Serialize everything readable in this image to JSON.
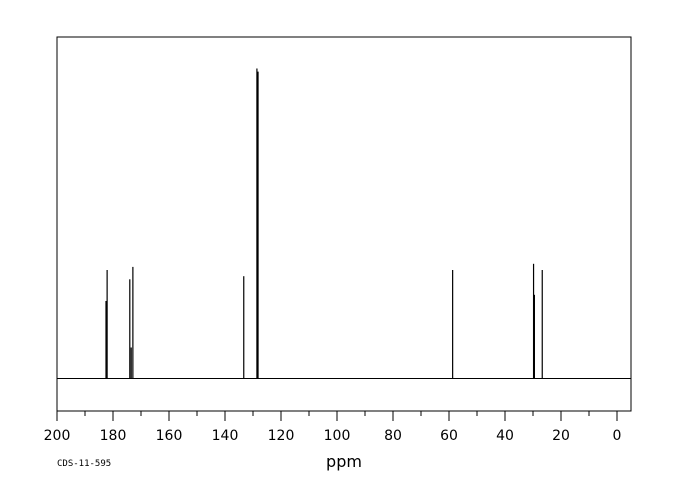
{
  "chart_data": {
    "type": "line",
    "title": "",
    "xlabel": "ppm",
    "ylabel": "",
    "xlim": [
      200,
      -5
    ],
    "x_reversed": true,
    "grid": false,
    "x_ticks": [
      200,
      180,
      160,
      140,
      120,
      100,
      80,
      60,
      40,
      20,
      0
    ],
    "x_minor_step": 10,
    "baseline": 0,
    "peaks": [
      {
        "ppm": 182.5,
        "height": 0.25
      },
      {
        "ppm": 182.1,
        "height": 0.35
      },
      {
        "ppm": 174.0,
        "height": 0.32
      },
      {
        "ppm": 173.5,
        "height": 0.1
      },
      {
        "ppm": 172.9,
        "height": 0.36
      },
      {
        "ppm": 133.3,
        "height": 0.33
      },
      {
        "ppm": 128.6,
        "height": 1.0
      },
      {
        "ppm": 128.2,
        "height": 0.99
      },
      {
        "ppm": 58.7,
        "height": 0.35
      },
      {
        "ppm": 29.8,
        "height": 0.37
      },
      {
        "ppm": 29.5,
        "height": 0.27
      },
      {
        "ppm": 26.7,
        "height": 0.35
      }
    ],
    "annotation": "CDS-11-595"
  }
}
